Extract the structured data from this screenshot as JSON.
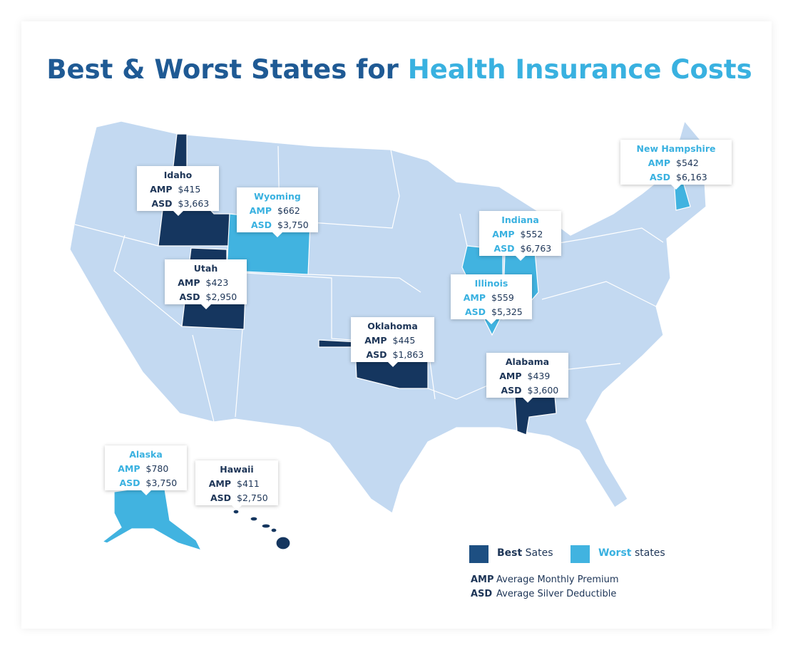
{
  "header": {
    "title_part1": "Best & Worst States for",
    "title_part2": "Health Insurance Costs"
  },
  "callouts": [
    {
      "state": "Idaho",
      "amp": "$415",
      "asd": "$3,663"
    },
    {
      "state": "Wyoming",
      "amp": "$662",
      "asd": "$3,750"
    },
    {
      "state": "Utah",
      "amp": "$423",
      "asd": "$2,950"
    },
    {
      "state": "Oklahoma",
      "amp": "$445",
      "asd": "$1,863"
    },
    {
      "state": "Indiana",
      "amp": "$552",
      "asd": "$6,763"
    },
    {
      "state": "Illinois",
      "amp": "$559",
      "asd": "$5,325"
    },
    {
      "state": "Alabama",
      "amp": "$439",
      "asd": "$3,600"
    },
    {
      "state": "New Hampshire",
      "amp": "$542",
      "asd": "$6,163"
    },
    {
      "state": "Alaska",
      "amp": "$780",
      "asd": "$3,750"
    },
    {
      "state": "Hawaii",
      "amp": "$411",
      "asd": "$2,750"
    }
  ],
  "legend": {
    "best_bold": "Best",
    "best_rest": "Sates",
    "worst_bold": "Worst",
    "worst_rest": "states",
    "definitions": [
      {
        "abbr": "AMP",
        "text": "Average Monthly Premium"
      },
      {
        "abbr": "ASD",
        "text": "Average Silver Deductible"
      }
    ]
  }
}
